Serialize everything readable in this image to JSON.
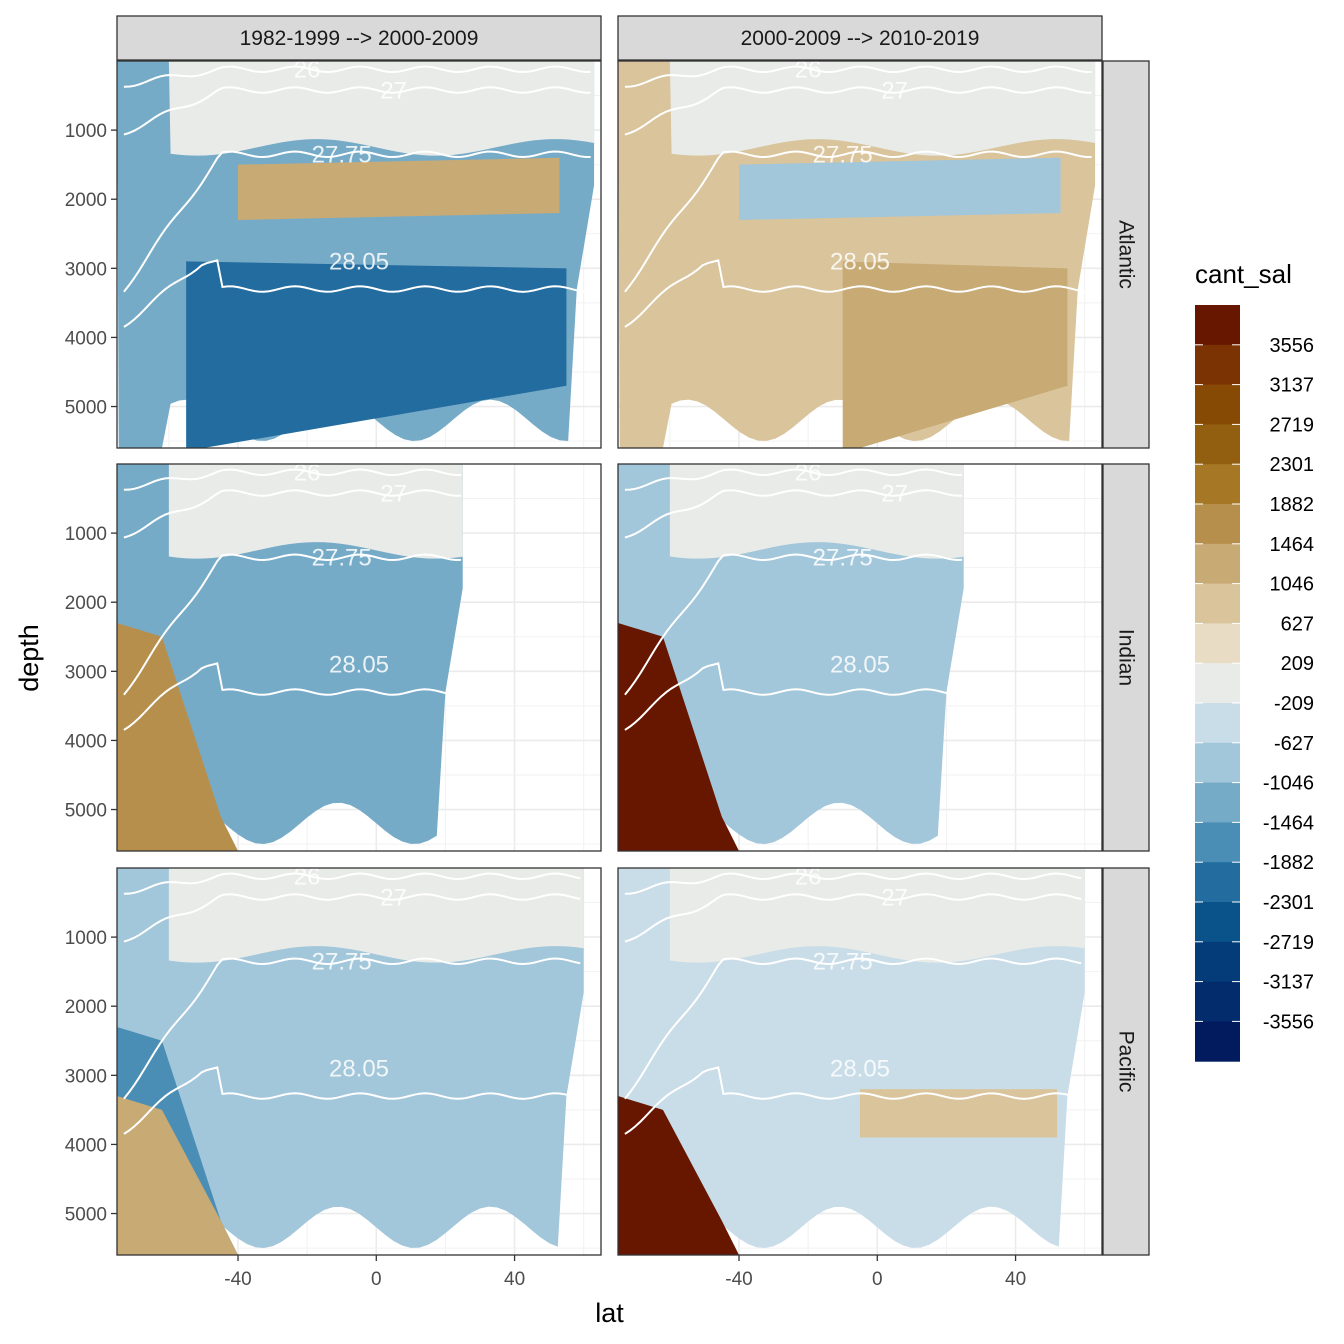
{
  "chart_data": {
    "type": "heatmap",
    "subtype": "faceted filled-contour sections with density isolines",
    "xlabel": "lat",
    "ylabel": "depth",
    "y_reversed": true,
    "xlim": [
      -75,
      65
    ],
    "x_ticks": [
      -40,
      0,
      40
    ],
    "ylim": [
      0,
      5600
    ],
    "y_ticks": [
      1000,
      2000,
      3000,
      4000,
      5000
    ],
    "grid": true,
    "facet_cols": [
      "1982-1999 --> 2000-2009",
      "2000-2009 --> 2010-2019"
    ],
    "facet_rows": [
      "Atlantic",
      "Indian",
      "Pacific"
    ],
    "legend": {
      "title": "cant_sal",
      "position": "right",
      "labels": [
        "3556",
        "3137",
        "2719",
        "2301",
        "1882",
        "1464",
        "1046",
        "627",
        "209",
        "-209",
        "-627",
        "-1046",
        "-1464",
        "-1882",
        "-2301",
        "-2719",
        "-3137",
        "-3556"
      ],
      "colors": [
        "#671600",
        "#7c3304",
        "#874a05",
        "#925e10",
        "#a67825",
        "#b78f4d",
        "#c8aa74",
        "#d9c49c",
        "#e8dcc5",
        "#e9ebe8",
        "#c9dde9",
        "#a2c6da",
        "#76abc8",
        "#4b8eb5",
        "#236c9f",
        "#09528a",
        "#043c7a",
        "#022c6c",
        "#011b5e"
      ]
    },
    "isopycnal_labels": [
      "26",
      "27",
      "27.75",
      "28.05"
    ],
    "panels": [
      {
        "row": "Atlantic",
        "col": "1982-1999 --> 2000-2009",
        "lat_max": 63,
        "dominant": -1046,
        "features": [
          {
            "name": "deep southern band",
            "value": -1882
          },
          {
            "name": "upper 1500-2300 m",
            "value": 1046
          }
        ]
      },
      {
        "row": "Atlantic",
        "col": "2000-2009 --> 2010-2019",
        "lat_max": 63,
        "dominant": 627,
        "features": [
          {
            "name": "deep northern band",
            "value": 1046
          },
          {
            "name": "upper 1500-2300 m",
            "value": -627
          }
        ]
      },
      {
        "row": "Indian",
        "col": "1982-1999 --> 2000-2009",
        "lat_max": 25,
        "dominant": -1046,
        "features": [
          {
            "name": "southern deep water",
            "value": 1464
          }
        ]
      },
      {
        "row": "Indian",
        "col": "2000-2009 --> 2010-2019",
        "lat_max": 25,
        "dominant": -627,
        "features": [
          {
            "name": "southern deep water",
            "value": 3556
          }
        ]
      },
      {
        "row": "Pacific",
        "col": "1982-1999 --> 2000-2009",
        "lat_max": 60,
        "dominant": -627,
        "features": [
          {
            "name": "southern deep water",
            "value": -1464
          },
          {
            "name": "southern bottom",
            "value": 1046
          }
        ]
      },
      {
        "row": "Pacific",
        "col": "2000-2009 --> 2010-2019",
        "lat_max": 60,
        "dominant": -209,
        "features": [
          {
            "name": "southern bottom",
            "value": 3556
          },
          {
            "name": "mid-depth north",
            "value": 627
          }
        ]
      }
    ]
  }
}
